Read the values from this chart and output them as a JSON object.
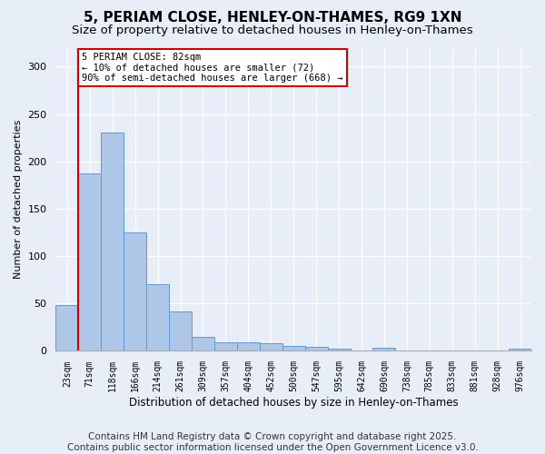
{
  "title": "5, PERIAM CLOSE, HENLEY-ON-THAMES, RG9 1XN",
  "subtitle": "Size of property relative to detached houses in Henley-on-Thames",
  "xlabel": "Distribution of detached houses by size in Henley-on-Thames",
  "ylabel": "Number of detached properties",
  "categories": [
    "23sqm",
    "71sqm",
    "118sqm",
    "166sqm",
    "214sqm",
    "261sqm",
    "309sqm",
    "357sqm",
    "404sqm",
    "452sqm",
    "500sqm",
    "547sqm",
    "595sqm",
    "642sqm",
    "690sqm",
    "738sqm",
    "785sqm",
    "833sqm",
    "881sqm",
    "928sqm",
    "976sqm"
  ],
  "values": [
    48,
    187,
    230,
    125,
    70,
    42,
    15,
    9,
    9,
    8,
    5,
    4,
    2,
    0,
    3,
    0,
    0,
    0,
    0,
    0,
    2
  ],
  "bar_color": "#aec6e8",
  "bar_edge_color": "#5b9bd5",
  "annotation_line1": "5 PERIAM CLOSE: 82sqm",
  "annotation_line2": "← 10% of detached houses are smaller (72)",
  "annotation_line3": "90% of semi-detached houses are larger (668) →",
  "vline_x": 0.5,
  "annotation_box_color": "#ffffff",
  "annotation_box_edge": "#cc0000",
  "vline_color": "#cc0000",
  "bg_color": "#e8eef7",
  "footnote": "Contains HM Land Registry data © Crown copyright and database right 2025.\nContains public sector information licensed under the Open Government Licence v3.0.",
  "ylim": [
    0,
    320
  ],
  "yticks": [
    0,
    50,
    100,
    150,
    200,
    250,
    300
  ],
  "title_fontsize": 11,
  "subtitle_fontsize": 9.5,
  "footnote_fontsize": 7.5
}
